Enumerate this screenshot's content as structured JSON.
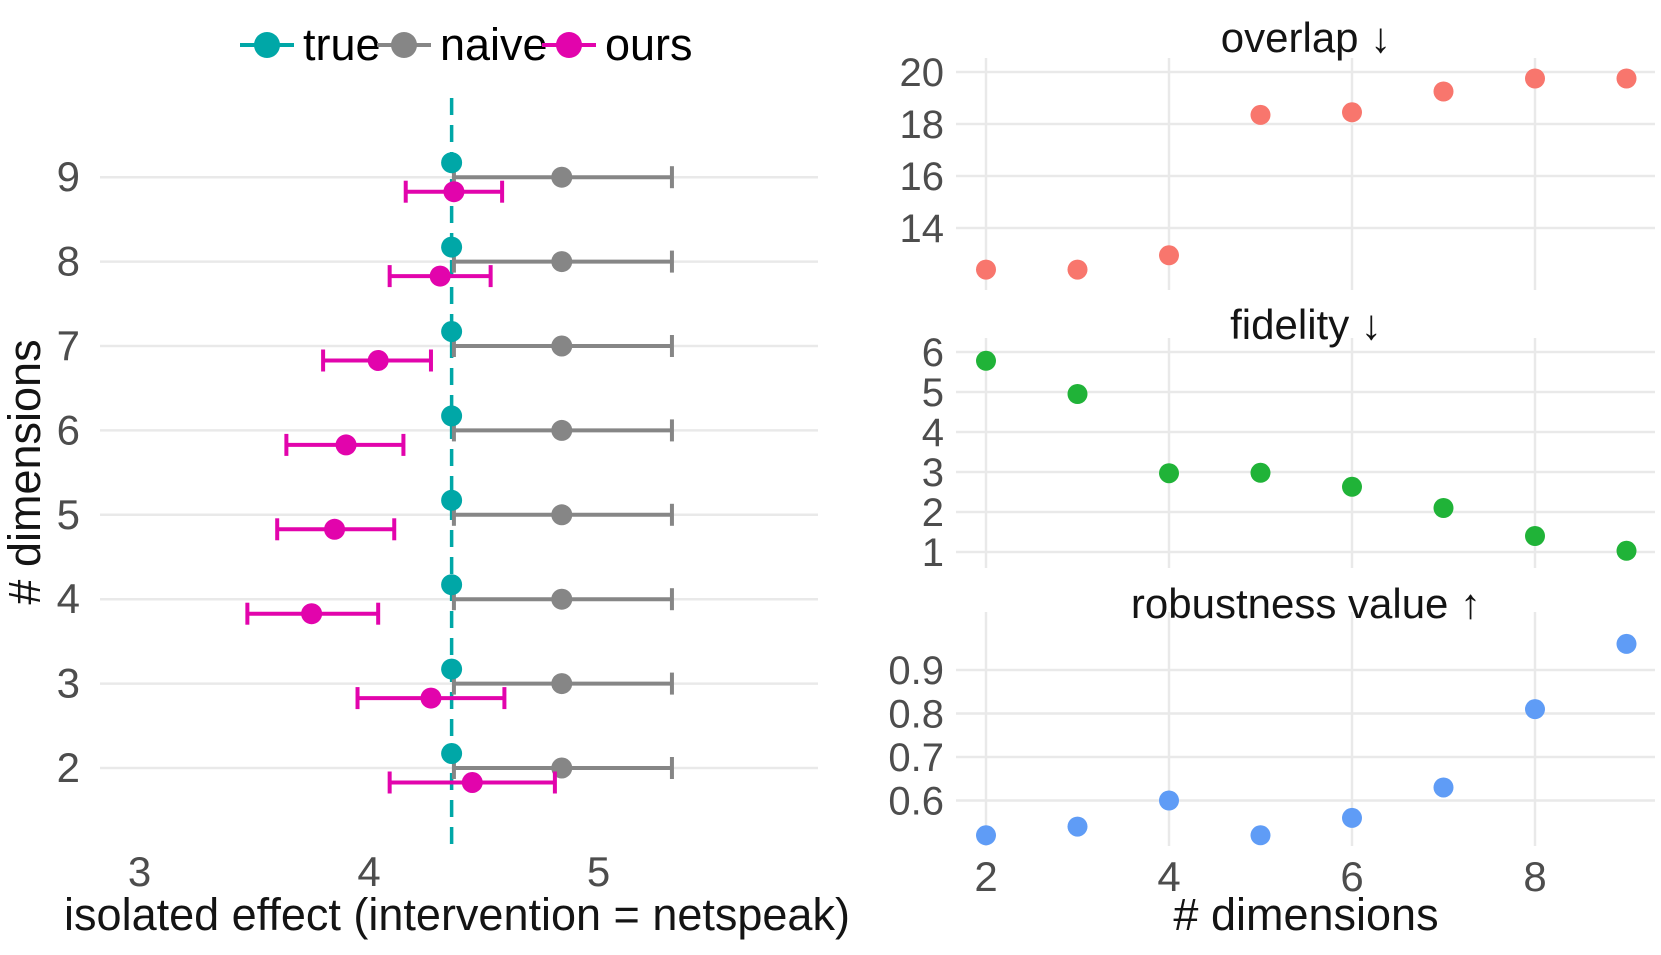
{
  "colors": {
    "teal": "#00A7A7",
    "gray": "#868686",
    "magenta": "#E204AC",
    "salmon": "#F8766D",
    "green": "#20B338",
    "blue": "#5F9CF6",
    "gridline": "#E9E9E9",
    "tick_text": "#4D4D4D",
    "label_text": "#141414"
  },
  "legend": {
    "position": "top-left-panel",
    "items": [
      {
        "label": "true",
        "color_key": "teal"
      },
      {
        "label": "naive",
        "color_key": "gray"
      },
      {
        "label": "ours",
        "color_key": "magenta"
      }
    ]
  },
  "chart_data": [
    {
      "id": "isolated-effect",
      "type": "scatter",
      "title": "",
      "xlabel": "isolated effect (intervention = netspeak)",
      "ylabel": "# dimensions",
      "x_ticks": [
        3,
        4,
        5
      ],
      "xlim": [
        2.81,
        5.96
      ],
      "dims": [
        2,
        3,
        4,
        5,
        6,
        7,
        8,
        9
      ],
      "grid": "horizontal-only",
      "legend_position": "top",
      "reference_line": {
        "x": 4.36,
        "style": "dashed",
        "color_key": "teal"
      },
      "series": [
        {
          "name": "naive",
          "color_key": "gray",
          "offset": "on-line",
          "x": [
            4.84,
            4.84,
            4.84,
            4.84,
            4.84,
            4.84,
            4.84,
            4.84
          ],
          "lo": [
            4.37,
            4.37,
            4.37,
            4.37,
            4.37,
            4.37,
            4.37,
            4.37
          ],
          "hi": [
            5.32,
            5.32,
            5.32,
            5.32,
            5.32,
            5.32,
            5.32,
            5.32
          ]
        },
        {
          "name": "ours",
          "color_key": "magenta",
          "offset": "below-line",
          "x": [
            4.45,
            4.27,
            3.75,
            3.85,
            3.9,
            4.04,
            4.31,
            4.37
          ],
          "lo": [
            4.09,
            3.95,
            3.47,
            3.6,
            3.64,
            3.8,
            4.09,
            4.16
          ],
          "hi": [
            4.81,
            4.59,
            4.04,
            4.11,
            4.15,
            4.27,
            4.53,
            4.58
          ]
        },
        {
          "name": "true",
          "color_key": "teal",
          "offset": "above-line",
          "x": [
            4.36,
            4.36,
            4.36,
            4.36,
            4.36,
            4.36,
            4.36,
            4.36
          ]
        }
      ]
    },
    {
      "id": "overlap",
      "type": "scatter",
      "title": "overlap ↓",
      "color_key": "salmon",
      "x": [
        2,
        3,
        4,
        5,
        6,
        7,
        8,
        9
      ],
      "values": [
        12.4,
        12.4,
        12.95,
        18.35,
        18.45,
        19.25,
        19.75,
        19.75
      ],
      "y_ticks": [
        20,
        18,
        16,
        14
      ],
      "ylim": [
        12.0,
        20.3
      ],
      "grid": "both"
    },
    {
      "id": "fidelity",
      "type": "scatter",
      "title": "fidelity ↓",
      "color_key": "green",
      "x": [
        2,
        3,
        4,
        5,
        6,
        7,
        8,
        9
      ],
      "values": [
        5.78,
        4.95,
        2.97,
        2.98,
        2.63,
        2.1,
        1.4,
        1.03
      ],
      "y_ticks": [
        6,
        5,
        4,
        3,
        2,
        1
      ],
      "ylim": [
        0.9,
        6.3
      ],
      "grid": "both"
    },
    {
      "id": "robustness",
      "type": "scatter",
      "title": "robustness value ↑",
      "color_key": "blue",
      "x": [
        2,
        3,
        4,
        5,
        6,
        7,
        8,
        9
      ],
      "values": [
        0.52,
        0.54,
        0.6,
        0.52,
        0.56,
        0.63,
        0.81,
        0.96
      ],
      "y_ticks": [
        0.9,
        0.8,
        0.7,
        0.6
      ],
      "ylim": [
        0.5,
        0.98
      ],
      "xlabel": "# dimensions",
      "x_ticks": [
        2,
        4,
        6,
        8
      ],
      "grid": "both"
    }
  ]
}
